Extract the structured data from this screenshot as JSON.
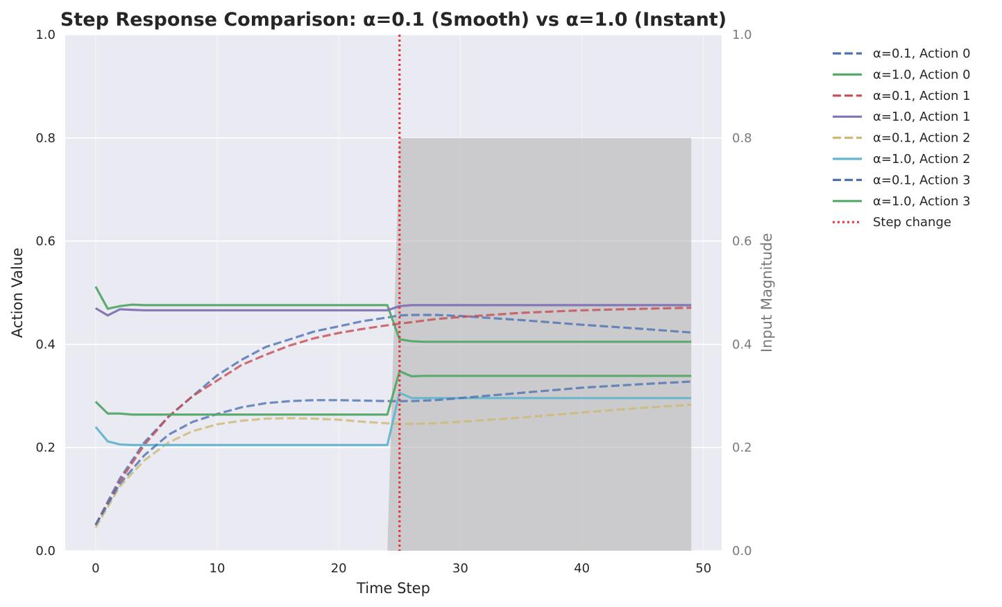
{
  "chart_data": {
    "type": "line",
    "title": "Step Response Comparison: α=0.1 (Smooth) vs α=1.0 (Instant)",
    "xlabel": "Time Step",
    "ylabel": "Action Value",
    "ylabel_right": "Input Magnitude",
    "xlim": [
      -2.5,
      51.5
    ],
    "ylim": [
      0,
      1.0
    ],
    "ylim_right": [
      0,
      1.0
    ],
    "x_ticks": [
      "0",
      "10",
      "20",
      "30",
      "40",
      "50"
    ],
    "y_ticks": [
      "0.0",
      "0.2",
      "0.4",
      "0.6",
      "0.8",
      "1.0"
    ],
    "y_ticks_right": [
      "0.0",
      "0.2",
      "0.4",
      "0.6",
      "0.8",
      "1.0"
    ],
    "grid": true,
    "legend_position": "outside-right",
    "step_change_x": 25,
    "input_area": {
      "label": "Input Magnitude",
      "color": "#b0b0b0",
      "x": [
        0,
        24,
        25,
        49
      ],
      "y": [
        0.0,
        0.0,
        0.8,
        0.8
      ]
    },
    "series": [
      {
        "name": "α=0.1, Action 0",
        "style": "dashed",
        "color": "#4c72b0",
        "x": [
          0,
          2,
          4,
          6,
          8,
          10,
          12,
          14,
          16,
          18,
          20,
          22,
          24,
          25,
          26,
          28,
          30,
          35,
          40,
          45,
          49
        ],
        "y": [
          0.05,
          0.14,
          0.21,
          0.26,
          0.3,
          0.34,
          0.37,
          0.395,
          0.41,
          0.425,
          0.435,
          0.445,
          0.452,
          0.456,
          0.457,
          0.457,
          0.455,
          0.447,
          0.438,
          0.43,
          0.423
        ]
      },
      {
        "name": "α=1.0, Action 0",
        "style": "solid",
        "color": "#55a868",
        "x": [
          0,
          1,
          2,
          3,
          4,
          6,
          10,
          15,
          20,
          24,
          25,
          26,
          27,
          30,
          35,
          40,
          45,
          49
        ],
        "y": [
          0.512,
          0.469,
          0.474,
          0.477,
          0.476,
          0.476,
          0.476,
          0.476,
          0.476,
          0.476,
          0.41,
          0.406,
          0.405,
          0.405,
          0.405,
          0.405,
          0.405,
          0.405
        ]
      },
      {
        "name": "α=0.1, Action 1",
        "style": "dashed",
        "color": "#c44e52",
        "x": [
          0,
          2,
          4,
          6,
          8,
          10,
          12,
          14,
          16,
          18,
          20,
          22,
          24,
          26,
          28,
          30,
          35,
          40,
          45,
          49
        ],
        "y": [
          0.05,
          0.135,
          0.205,
          0.26,
          0.3,
          0.33,
          0.36,
          0.38,
          0.398,
          0.412,
          0.422,
          0.43,
          0.437,
          0.443,
          0.449,
          0.453,
          0.461,
          0.466,
          0.469,
          0.471
        ]
      },
      {
        "name": "α=1.0, Action 1",
        "style": "solid",
        "color": "#8172b3",
        "x": [
          0,
          1,
          2,
          3,
          4,
          6,
          10,
          15,
          20,
          24,
          25,
          26,
          30,
          35,
          40,
          45,
          49
        ],
        "y": [
          0.47,
          0.456,
          0.468,
          0.467,
          0.466,
          0.466,
          0.466,
          0.466,
          0.466,
          0.466,
          0.474,
          0.476,
          0.476,
          0.476,
          0.476,
          0.476,
          0.476
        ]
      },
      {
        "name": "α=0.1, Action 2",
        "style": "dashed",
        "color": "#ccb974",
        "x": [
          0,
          2,
          4,
          6,
          8,
          10,
          12,
          14,
          16,
          18,
          20,
          22,
          24,
          25,
          26,
          28,
          30,
          35,
          40,
          45,
          49
        ],
        "y": [
          0.045,
          0.125,
          0.175,
          0.21,
          0.232,
          0.245,
          0.252,
          0.256,
          0.257,
          0.256,
          0.254,
          0.25,
          0.247,
          0.246,
          0.246,
          0.247,
          0.25,
          0.258,
          0.268,
          0.277,
          0.283
        ]
      },
      {
        "name": "α=1.0, Action 2",
        "style": "solid",
        "color": "#64b5cd",
        "x": [
          0,
          1,
          2,
          3,
          4,
          6,
          10,
          15,
          20,
          24,
          25,
          26,
          27,
          30,
          35,
          40,
          45,
          49
        ],
        "y": [
          0.24,
          0.212,
          0.206,
          0.205,
          0.205,
          0.205,
          0.205,
          0.205,
          0.205,
          0.205,
          0.306,
          0.296,
          0.296,
          0.296,
          0.296,
          0.296,
          0.296,
          0.296
        ]
      },
      {
        "name": "α=0.1, Action 3",
        "style": "dashed",
        "color": "#4c72b0",
        "x": [
          0,
          2,
          4,
          6,
          8,
          10,
          12,
          14,
          16,
          18,
          20,
          22,
          24,
          25,
          26,
          28,
          30,
          35,
          40,
          45,
          49
        ],
        "y": [
          0.05,
          0.13,
          0.185,
          0.225,
          0.25,
          0.265,
          0.278,
          0.286,
          0.29,
          0.292,
          0.292,
          0.291,
          0.29,
          0.29,
          0.29,
          0.292,
          0.296,
          0.306,
          0.316,
          0.323,
          0.328
        ]
      },
      {
        "name": "α=1.0, Action 3",
        "style": "solid",
        "color": "#55a868",
        "x": [
          0,
          1,
          2,
          3,
          4,
          6,
          10,
          15,
          20,
          24,
          25,
          26,
          27,
          30,
          35,
          40,
          45,
          49
        ],
        "y": [
          0.289,
          0.266,
          0.266,
          0.264,
          0.264,
          0.264,
          0.264,
          0.264,
          0.264,
          0.264,
          0.348,
          0.338,
          0.339,
          0.339,
          0.339,
          0.339,
          0.339,
          0.339
        ]
      }
    ],
    "step_line": {
      "name": "Step change",
      "color": "#e8363d",
      "style": "dotted"
    }
  }
}
